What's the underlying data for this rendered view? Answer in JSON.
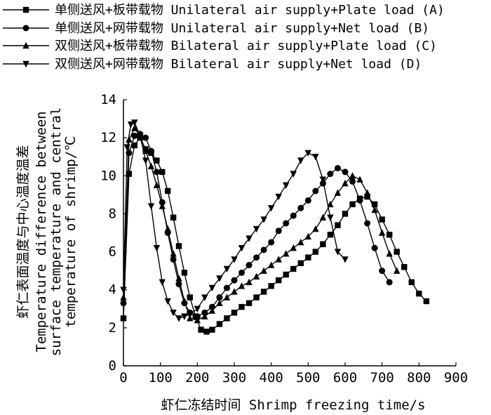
{
  "chart_data": {
    "type": "line",
    "title": "",
    "xlabel": "虾仁冻结时间 Shrimp freezing time/s",
    "ylabel_lines": [
      "虾仁表面温度与中心温度温差",
      "Temperature difference between",
      "surface temperature and central",
      "temperature of shrimp/℃"
    ],
    "xlim": [
      0,
      900
    ],
    "ylim": [
      0,
      14
    ],
    "xticks": [
      "0",
      "100",
      "200",
      "300",
      "400",
      "500",
      "600",
      "700",
      "800",
      "900"
    ],
    "yticks": [
      "0",
      "2",
      "4",
      "6",
      "8",
      "10",
      "12",
      "14"
    ],
    "grid": false,
    "legend_position": "top",
    "series": [
      {
        "name": "单侧送风+板带载物 Unilateral air supply+Plate load (A)",
        "marker": "square",
        "x": [
          0,
          15,
          30,
          45,
          60,
          75,
          90,
          105,
          120,
          135,
          150,
          165,
          180,
          195,
          210,
          225,
          240,
          260,
          280,
          300,
          320,
          340,
          360,
          380,
          400,
          420,
          440,
          460,
          480,
          500,
          520,
          540,
          560,
          580,
          600,
          620,
          640,
          660,
          680,
          700,
          720,
          740,
          760,
          780,
          800,
          820
        ],
        "y": [
          2.5,
          10.1,
          11.6,
          12.0,
          11.4,
          11.2,
          10.8,
          10.2,
          9.2,
          7.8,
          6.3,
          4.9,
          3.6,
          2.6,
          1.9,
          1.8,
          1.9,
          2.2,
          2.5,
          2.8,
          3.1,
          3.3,
          3.6,
          3.9,
          4.2,
          4.5,
          4.8,
          5.1,
          5.4,
          5.7,
          6.0,
          6.4,
          6.9,
          7.4,
          8.0,
          8.5,
          8.8,
          8.9,
          8.5,
          7.7,
          6.9,
          6.0,
          5.2,
          4.4,
          3.8,
          3.4
        ]
      },
      {
        "name": "单侧送风+网带载物 Unilateral air supply+Net load (B)",
        "marker": "circle",
        "x": [
          0,
          15,
          30,
          45,
          60,
          75,
          90,
          105,
          120,
          135,
          150,
          165,
          180,
          200,
          220,
          240,
          260,
          280,
          300,
          320,
          340,
          360,
          380,
          400,
          420,
          440,
          460,
          480,
          500,
          520,
          540,
          560,
          580,
          600,
          620,
          640,
          660,
          680,
          700,
          720
        ],
        "y": [
          3.3,
          11.2,
          12.1,
          12.2,
          12.0,
          11.3,
          10.2,
          8.6,
          7.0,
          5.6,
          4.3,
          3.3,
          2.8,
          2.6,
          2.8,
          3.1,
          3.6,
          4.1,
          4.5,
          4.9,
          5.3,
          5.7,
          6.1,
          6.5,
          7.1,
          7.5,
          7.9,
          8.3,
          8.7,
          9.2,
          9.6,
          10.1,
          10.4,
          10.2,
          9.7,
          8.7,
          7.5,
          6.2,
          5.0,
          4.4
        ]
      },
      {
        "name": "双侧送风+板带载物 Bilateral air supply+Plate load (C)",
        "marker": "triangle-up",
        "x": [
          0,
          15,
          30,
          45,
          60,
          75,
          90,
          105,
          120,
          135,
          150,
          165,
          180,
          200,
          220,
          240,
          260,
          280,
          300,
          320,
          340,
          360,
          380,
          400,
          420,
          440,
          460,
          480,
          500,
          520,
          540,
          560,
          580,
          600,
          620,
          640,
          660,
          680,
          700,
          720,
          740
        ],
        "y": [
          3.6,
          11.9,
          12.5,
          12.1,
          11.3,
          10.5,
          9.5,
          8.4,
          7.2,
          5.9,
          4.6,
          3.4,
          2.5,
          2.4,
          2.6,
          2.9,
          3.3,
          3.6,
          3.9,
          4.2,
          4.4,
          4.7,
          5.0,
          5.3,
          5.6,
          5.9,
          6.2,
          6.5,
          6.8,
          7.2,
          7.8,
          8.5,
          9.1,
          9.6,
          10.0,
          9.8,
          9.1,
          8.2,
          7.0,
          5.9,
          5.0
        ]
      },
      {
        "name": "双侧送风+网带载物 Bilateral air supply+Net load (D)",
        "marker": "triangle-down",
        "x": [
          0,
          10,
          20,
          30,
          45,
          60,
          75,
          90,
          105,
          120,
          135,
          150,
          165,
          180,
          200,
          220,
          240,
          260,
          280,
          300,
          320,
          340,
          360,
          380,
          400,
          420,
          440,
          460,
          480,
          500,
          520,
          540,
          560,
          580,
          600
        ],
        "y": [
          4.0,
          11.5,
          12.7,
          12.8,
          12.1,
          10.8,
          8.4,
          6.2,
          4.4,
          3.4,
          2.8,
          2.5,
          2.6,
          2.7,
          3.0,
          3.6,
          4.1,
          4.6,
          5.1,
          5.6,
          6.2,
          6.7,
          7.2,
          7.7,
          8.3,
          8.9,
          9.5,
          10.1,
          10.8,
          11.2,
          11.0,
          9.8,
          7.8,
          6.0,
          5.6
        ]
      }
    ]
  }
}
